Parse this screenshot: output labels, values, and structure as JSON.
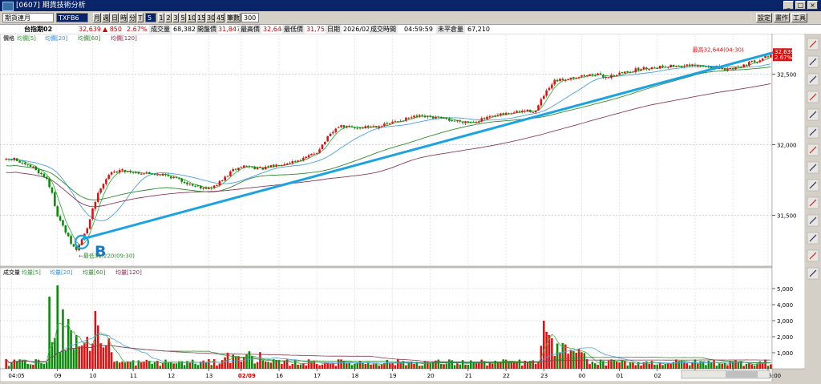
{
  "window": {
    "title": "[0607] 期貨技術分析"
  },
  "window_buttons": [
    "_",
    "□",
    "×"
  ],
  "window_actions": {
    "settings": "設定",
    "draw": "畫作",
    "tools": "工具"
  },
  "toolbar": {
    "symbol": "期貨連月",
    "contract": "TXFB6",
    "periods": [
      "月",
      "週",
      "日",
      "時",
      "分",
      "T"
    ],
    "interval": "5",
    "minutes": [
      "1",
      "2",
      "3",
      "5",
      "10",
      "15",
      "30",
      "45"
    ],
    "bars_label": "筆數",
    "bars_value": "300"
  },
  "quote": {
    "name": "台指期02",
    "last": "32,639",
    "change": "▲ 850",
    "change_pct": "2.67%",
    "volume_label": "成交量",
    "volume": "68,382",
    "open_label": "開盤價",
    "open": "31,847",
    "high_label": "最高價",
    "high": "32,644",
    "low_label": "最低價",
    "low": "31,753",
    "date_label": "日期",
    "date": "2026/02/09",
    "time_label": "成交時間",
    "time": "04:59:59",
    "oi_label": "未平倉量",
    "oi": "67,210"
  },
  "price_panel": {
    "legend": [
      {
        "text": "價格",
        "color": "#000000"
      },
      {
        "text": "均價[5]",
        "color": "#2e9e2e"
      },
      {
        "text": "均價[20]",
        "color": "#3a8fd8"
      },
      {
        "text": "均價[60]",
        "color": "#2e8b2e"
      },
      {
        "text": "均價[120]",
        "color": "#8b2e4a"
      }
    ],
    "high_annotation": "最高32,644(04:30)",
    "low_annotation": "←最低31,220(09:30)",
    "last_price_tag": "32,639",
    "last_pct_tag": "2.67%",
    "marker_label": "B"
  },
  "volume_panel": {
    "legend": [
      {
        "text": "成交量",
        "color": "#000000"
      },
      {
        "text": "均量[5]",
        "color": "#2e9e2e"
      },
      {
        "text": "均量[20]",
        "color": "#3a8fd8"
      },
      {
        "text": "均量[60]",
        "color": "#2e8b2e"
      },
      {
        "text": "均量[120]",
        "color": "#8b2e4a"
      }
    ]
  },
  "chart_data": {
    "type": "candlestick",
    "y_ticks": [
      "31,500",
      "32,000",
      "32,500"
    ],
    "y_tick_values": [
      31500,
      32000,
      32500
    ],
    "ylim": [
      31150,
      32720
    ],
    "volume_ticks": [
      "1,000",
      "2,000",
      "3,000",
      "4,000",
      "5,000"
    ],
    "volume_tick_values": [
      1000,
      2000,
      3000,
      4000,
      5000
    ],
    "volume_ylim": [
      0,
      5600
    ],
    "x_ticks": [
      {
        "label": "04:05",
        "bar": 2
      },
      {
        "label": "09",
        "bar": 19
      },
      {
        "label": "10",
        "bar": 32
      },
      {
        "label": "11",
        "bar": 47
      },
      {
        "label": "12",
        "bar": 61
      },
      {
        "label": "13",
        "bar": 75
      },
      {
        "label": "02/09",
        "bar": 87
      },
      {
        "label": "16",
        "bar": 101
      },
      {
        "label": "17",
        "bar": 115
      },
      {
        "label": "18",
        "bar": 129
      },
      {
        "label": "19",
        "bar": 143
      },
      {
        "label": "20",
        "bar": 157
      },
      {
        "label": "21",
        "bar": 171
      },
      {
        "label": "22",
        "bar": 185
      },
      {
        "label": "23",
        "bar": 199
      },
      {
        "label": "00",
        "bar": 213
      },
      {
        "label": "01",
        "bar": 227
      },
      {
        "label": "02",
        "bar": 241
      },
      {
        "label": "03",
        "bar": 255
      },
      {
        "label": "04",
        "bar": 269
      },
      {
        "label": "05:00",
        "bar": 282
      }
    ],
    "bar_count": 284,
    "price_anchors": [
      [
        0,
        31890
      ],
      [
        3,
        31900
      ],
      [
        6,
        31860
      ],
      [
        10,
        31840
      ],
      [
        13,
        31790
      ],
      [
        15,
        31760
      ],
      [
        17,
        31650
      ],
      [
        19,
        31500
      ],
      [
        22,
        31380
      ],
      [
        24,
        31300
      ],
      [
        26,
        31250
      ],
      [
        28,
        31330
      ],
      [
        30,
        31400
      ],
      [
        32,
        31550
      ],
      [
        35,
        31700
      ],
      [
        38,
        31790
      ],
      [
        42,
        31820
      ],
      [
        50,
        31800
      ],
      [
        58,
        31790
      ],
      [
        63,
        31760
      ],
      [
        68,
        31720
      ],
      [
        72,
        31700
      ],
      [
        76,
        31690
      ],
      [
        80,
        31750
      ],
      [
        84,
        31820
      ],
      [
        88,
        31850
      ],
      [
        95,
        31830
      ],
      [
        103,
        31870
      ],
      [
        110,
        31900
      ],
      [
        115,
        31950
      ],
      [
        119,
        32050
      ],
      [
        123,
        32130
      ],
      [
        130,
        32120
      ],
      [
        140,
        32140
      ],
      [
        145,
        32170
      ],
      [
        152,
        32200
      ],
      [
        160,
        32190
      ],
      [
        166,
        32170
      ],
      [
        172,
        32160
      ],
      [
        178,
        32190
      ],
      [
        185,
        32220
      ],
      [
        192,
        32240
      ],
      [
        196,
        32240
      ],
      [
        199,
        32350
      ],
      [
        203,
        32450
      ],
      [
        210,
        32480
      ],
      [
        218,
        32500
      ],
      [
        222,
        32480
      ],
      [
        228,
        32510
      ],
      [
        235,
        32540
      ],
      [
        245,
        32560
      ],
      [
        255,
        32560
      ],
      [
        262,
        32550
      ],
      [
        266,
        32530
      ],
      [
        272,
        32560
      ],
      [
        278,
        32600
      ],
      [
        283,
        32639
      ]
    ],
    "series": [
      {
        "name": "均價[5]",
        "period": 5,
        "color": "#3cb043"
      },
      {
        "name": "均價[20]",
        "period": 20,
        "color": "#4aa0e0"
      },
      {
        "name": "均價[60]",
        "period": 60,
        "color": "#2e8b2e"
      },
      {
        "name": "均價[120]",
        "period": 120,
        "color": "#8b3a55"
      }
    ],
    "volume_spikes": [
      [
        16,
        4500
      ],
      [
        19,
        5200
      ],
      [
        21,
        3700
      ],
      [
        23,
        3100
      ],
      [
        24,
        2400
      ],
      [
        26,
        2100
      ],
      [
        30,
        2000
      ],
      [
        33,
        3600
      ],
      [
        34,
        2700
      ],
      [
        199,
        3000
      ],
      [
        200,
        2300
      ],
      [
        201,
        2100
      ],
      [
        202,
        1900
      ]
    ],
    "trendline": {
      "from": {
        "bar": 28,
        "price": 31330
      },
      "to": {
        "bar": 286,
        "price": 32665
      }
    },
    "marker": {
      "bar": 28,
      "price": 31310
    },
    "grid": true
  }
}
